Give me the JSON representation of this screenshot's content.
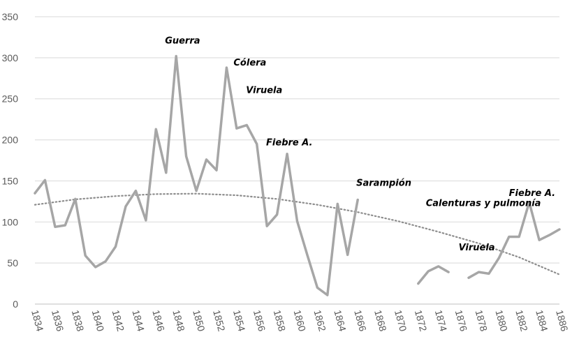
{
  "chart_data": {
    "type": "line",
    "title": "",
    "xlabel": "",
    "ylabel": "",
    "xlim": [
      1834,
      1886
    ],
    "ylim": [
      0,
      350
    ],
    "y_ticks": [
      0,
      50,
      100,
      150,
      200,
      250,
      300,
      350
    ],
    "x_ticks": [
      "1834",
      "1836",
      "1838",
      "1840",
      "1842",
      "1844",
      "1846",
      "1848",
      "1850",
      "1852",
      "1854",
      "1856",
      "1858",
      "1860",
      "1862",
      "1864",
      "1866",
      "1868",
      "1870",
      "1872",
      "1874",
      "1876",
      "1878",
      "1880",
      "1882",
      "1884",
      "1886"
    ],
    "grid": "horizontal",
    "legend": "none",
    "colors": {
      "series": "#a6a6a6",
      "trend": "#8c8c8c",
      "grid": "#d9d9d9",
      "axis": "#bfbfbf"
    },
    "series": [
      {
        "style": "solid",
        "segments": [
          [
            [
              1834,
              135
            ],
            [
              1835,
              151
            ],
            [
              1836,
              94
            ],
            [
              1837,
              96
            ],
            [
              1838,
              128
            ],
            [
              1839,
              59
            ],
            [
              1840,
              45
            ],
            [
              1841,
              52
            ],
            [
              1842,
              70
            ],
            [
              1843,
              119
            ],
            [
              1844,
              138
            ],
            [
              1845,
              102
            ],
            [
              1846,
              213
            ],
            [
              1847,
              160
            ],
            [
              1848,
              302
            ],
            [
              1849,
              180
            ],
            [
              1850,
              138
            ],
            [
              1851,
              176
            ],
            [
              1852,
              163
            ],
            [
              1853,
              288
            ],
            [
              1854,
              214
            ],
            [
              1855,
              218
            ],
            [
              1856,
              195
            ],
            [
              1857,
              95
            ],
            [
              1858,
              109
            ],
            [
              1859,
              183
            ],
            [
              1860,
              101
            ],
            [
              1861,
              60
            ],
            [
              1862,
              20
            ],
            [
              1863,
              11
            ],
            [
              1864,
              122
            ],
            [
              1865,
              60
            ],
            [
              1866,
              127
            ]
          ],
          [
            [
              1872,
              25
            ],
            [
              1873,
              40
            ],
            [
              1874,
              46
            ],
            [
              1875,
              39
            ]
          ],
          [
            [
              1877,
              32
            ],
            [
              1878,
              39
            ],
            [
              1879,
              37
            ],
            [
              1880,
              56
            ],
            [
              1881,
              82
            ],
            [
              1882,
              82
            ],
            [
              1883,
              124
            ],
            [
              1884,
              78
            ],
            [
              1885,
              84
            ],
            [
              1886,
              91
            ]
          ]
        ]
      },
      {
        "style": "dotted",
        "trend": "polynomial",
        "points": [
          [
            1834,
            121
          ],
          [
            1838,
            127.5
          ],
          [
            1842,
            131.5
          ],
          [
            1846,
            134
          ],
          [
            1850,
            134.5
          ],
          [
            1854,
            132.5
          ],
          [
            1858,
            128
          ],
          [
            1862,
            121
          ],
          [
            1866,
            112
          ],
          [
            1870,
            101
          ],
          [
            1874,
            88
          ],
          [
            1878,
            74
          ],
          [
            1882,
            57
          ],
          [
            1886,
            36
          ]
        ]
      }
    ],
    "annotations": [
      {
        "text": "Guerra",
        "x": 1848,
        "y": 302
      },
      {
        "text": "Cólera",
        "x": 1853,
        "y": 288
      },
      {
        "text": "Viruela",
        "x": 1855,
        "y": 218
      },
      {
        "text": "Fiebre A.",
        "x": 1859,
        "y": 183
      },
      {
        "text": "Sarampión",
        "x": 1866,
        "y": 127
      },
      {
        "text": "Calenturas y pulmonía",
        "x": 1874,
        "y": 109
      },
      {
        "text": "Viruela",
        "x": 1876,
        "y": 46
      },
      {
        "text": "Fiebre A.",
        "x": 1883,
        "y": 124
      }
    ]
  }
}
